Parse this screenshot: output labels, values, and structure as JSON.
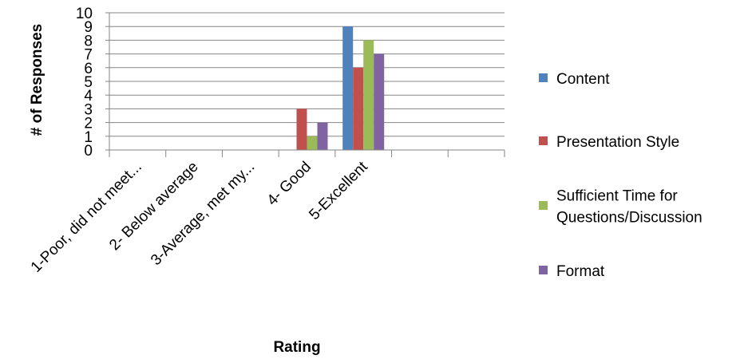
{
  "chart_data": {
    "type": "bar",
    "xlabel": "Rating",
    "ylabel": "# of Responses",
    "ylim": [
      0,
      10
    ],
    "yticks": [
      0,
      1,
      2,
      3,
      4,
      5,
      6,
      7,
      8,
      9,
      10
    ],
    "categories": [
      "1-Poor, did not meet...",
      "2- Below average",
      "3-Average, met my...",
      "4- Good",
      "5-Excellent",
      "",
      ""
    ],
    "series": [
      {
        "name": "Content",
        "color": "#4F81BD",
        "values": [
          0,
          0,
          0,
          0,
          9,
          0,
          0
        ]
      },
      {
        "name": "Presentation Style",
        "color": "#C0504D",
        "values": [
          0,
          0,
          0,
          3,
          6,
          0,
          0
        ]
      },
      {
        "name": "Sufficient Time for Questions/Discussion",
        "color": "#9BBB59",
        "values": [
          0,
          0,
          0,
          1,
          8,
          0,
          0
        ]
      },
      {
        "name": "Format",
        "color": "#8064A2",
        "values": [
          0,
          0,
          0,
          2,
          7,
          0,
          0
        ]
      }
    ],
    "legend_lines": [
      [
        "Content"
      ],
      [
        "Presentation Style"
      ],
      [
        "Sufficient Time for",
        "Questions/Discussion"
      ],
      [
        "Format"
      ]
    ],
    "grid": true,
    "legend_position": "right"
  }
}
